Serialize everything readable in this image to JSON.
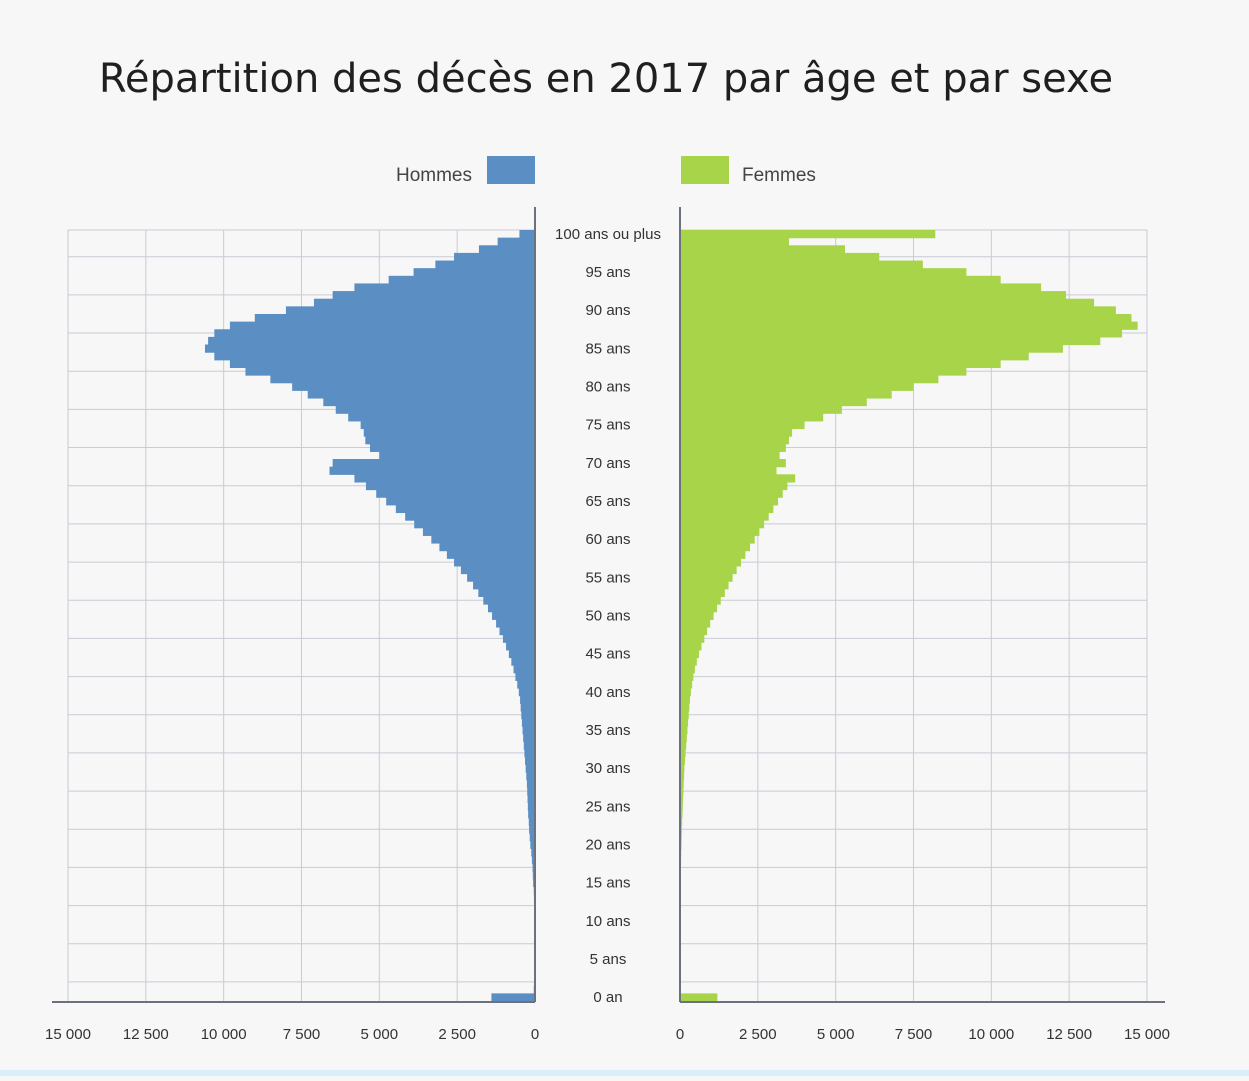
{
  "chart_data": {
    "type": "bar",
    "orientation": "horizontal-population-pyramid",
    "title": "Répartition des décès en 2017 par âge et par sexe",
    "legend": {
      "placement": "top-center"
    },
    "grid": true,
    "xlim": [
      0,
      15000
    ],
    "x_ticks": [
      {
        "value": 15000,
        "label": "15 000"
      },
      {
        "value": 12500,
        "label": "12 500"
      },
      {
        "value": 10000,
        "label": "10 000"
      },
      {
        "value": 7500,
        "label": "7 500"
      },
      {
        "value": 5000,
        "label": "5 000"
      },
      {
        "value": 2500,
        "label": "2 500"
      },
      {
        "value": 0,
        "label": "0"
      }
    ],
    "age_labels": [
      {
        "age": 100,
        "label": "100 ans ou plus"
      },
      {
        "age": 95,
        "label": "95 ans"
      },
      {
        "age": 90,
        "label": "90 ans"
      },
      {
        "age": 85,
        "label": "85 ans"
      },
      {
        "age": 80,
        "label": "80 ans"
      },
      {
        "age": 75,
        "label": "75 ans"
      },
      {
        "age": 70,
        "label": "70 ans"
      },
      {
        "age": 65,
        "label": "65 ans"
      },
      {
        "age": 60,
        "label": "60 ans"
      },
      {
        "age": 55,
        "label": "55 ans"
      },
      {
        "age": 50,
        "label": "50 ans"
      },
      {
        "age": 45,
        "label": "45 ans"
      },
      {
        "age": 40,
        "label": "40 ans"
      },
      {
        "age": 35,
        "label": "35 ans"
      },
      {
        "age": 30,
        "label": "30 ans"
      },
      {
        "age": 25,
        "label": "25 ans"
      },
      {
        "age": 20,
        "label": "20 ans"
      },
      {
        "age": 15,
        "label": "15 ans"
      },
      {
        "age": 10,
        "label": "10 ans"
      },
      {
        "age": 5,
        "label": "5 ans"
      },
      {
        "age": 0,
        "label": "0 an"
      }
    ],
    "series": [
      {
        "name": "Hommes",
        "color": "#5b8fc4",
        "side": "left",
        "values": [
          1400,
          40,
          30,
          25,
          20,
          15,
          15,
          15,
          15,
          15,
          20,
          25,
          30,
          35,
          40,
          60,
          70,
          80,
          100,
          120,
          150,
          170,
          190,
          200,
          220,
          230,
          240,
          250,
          260,
          280,
          300,
          320,
          340,
          360,
          380,
          400,
          420,
          440,
          460,
          480,
          520,
          570,
          630,
          690,
          760,
          840,
          930,
          1030,
          1140,
          1250,
          1380,
          1510,
          1660,
          1820,
          1990,
          2180,
          2380,
          2600,
          2830,
          3070,
          3330,
          3600,
          3880,
          4170,
          4470,
          4780,
          5100,
          5430,
          5800,
          6600,
          6500,
          5000,
          5300,
          5450,
          5500,
          5600,
          6000,
          6400,
          6800,
          7300,
          7800,
          8500,
          9300,
          9800,
          10300,
          10600,
          10500,
          10300,
          9800,
          9000,
          8000,
          7100,
          6500,
          5800,
          4700,
          3900,
          3200,
          2600,
          1800,
          1200,
          500
        ]
      },
      {
        "name": "Femmes",
        "color": "#a8d44a",
        "side": "right",
        "values": [
          1200,
          30,
          20,
          15,
          15,
          10,
          10,
          10,
          10,
          10,
          12,
          15,
          15,
          15,
          20,
          25,
          25,
          30,
          35,
          40,
          50,
          55,
          60,
          70,
          80,
          90,
          100,
          110,
          120,
          130,
          140,
          160,
          180,
          200,
          220,
          240,
          260,
          280,
          300,
          320,
          350,
          390,
          430,
          480,
          540,
          610,
          690,
          780,
          870,
          970,
          1080,
          1190,
          1310,
          1440,
          1560,
          1690,
          1820,
          1960,
          2100,
          2250,
          2400,
          2550,
          2700,
          2850,
          3000,
          3150,
          3300,
          3450,
          3700,
          3100,
          3400,
          3200,
          3400,
          3500,
          3600,
          4000,
          4600,
          5200,
          6000,
          6800,
          7500,
          8300,
          9200,
          10300,
          11200,
          12300,
          13500,
          14200,
          14700,
          14500,
          14000,
          13300,
          12400,
          11600,
          10300,
          9200,
          7800,
          6400,
          5300,
          3500,
          8200
        ]
      }
    ]
  }
}
